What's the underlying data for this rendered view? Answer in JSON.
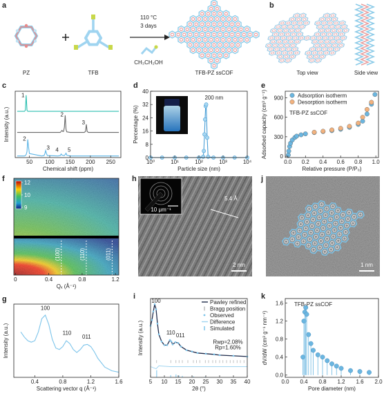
{
  "scheme": {
    "panel": "a",
    "pz": "PZ",
    "tfb": "TFB",
    "temperature": "110 °C",
    "time": "3 days",
    "solvent": "CH₃CH₂OH",
    "product": "TFB-PZ ssCOF"
  },
  "views": {
    "panel": "b",
    "top": "Top view",
    "side": "Side view"
  },
  "hrtem": {
    "panel": "h",
    "fft_scale": "10 μm⁻¹",
    "spacing": "5.4 Å",
    "scale_bar": "2 nm"
  },
  "stem_image": {
    "panel": "j",
    "scale_bar": "1 nm"
  },
  "chart_data": [
    {
      "panel": "c",
      "type": "line",
      "xlabel": "Chemical shift (ppm)",
      "ylabel": "Intensity (a.u.)",
      "xlim": [
        15,
        275
      ],
      "xticks": [
        50,
        100,
        150,
        200,
        250
      ],
      "ylim": [
        0,
        3.3
      ],
      "x": [
        20,
        38,
        40,
        42,
        44,
        46,
        48,
        50,
        80,
        86,
        88,
        90,
        92,
        94,
        120,
        126,
        128,
        130,
        132,
        134,
        136,
        138,
        140,
        142,
        150,
        185,
        188,
        190,
        192,
        195,
        230,
        270
      ],
      "series": [
        {
          "color": "#2bbfb0",
          "peak_labels": [
            "1"
          ],
          "values": [
            2.3,
            2.3,
            2.35,
            3.1,
            2.35,
            2.3,
            2.3,
            2.3,
            2.3,
            2.3,
            2.3,
            2.3,
            2.3,
            2.3,
            2.3,
            2.3,
            2.3,
            2.3,
            2.3,
            2.3,
            2.3,
            2.3,
            2.3,
            2.3,
            2.3,
            2.3,
            2.3,
            2.3,
            2.3,
            2.3,
            2.3,
            2.3
          ]
        },
        {
          "color": "#666666",
          "peak_labels": [
            "2",
            "3"
          ],
          "values": [
            1.25,
            1.25,
            1.25,
            1.25,
            1.25,
            1.25,
            1.25,
            1.25,
            1.25,
            1.25,
            1.25,
            1.25,
            1.25,
            1.25,
            1.25,
            1.25,
            1.3,
            1.35,
            1.3,
            1.3,
            1.5,
            2.1,
            1.4,
            1.28,
            1.25,
            1.25,
            1.3,
            1.65,
            1.3,
            1.25,
            1.25,
            1.25
          ]
        },
        {
          "color": "#5ab4e6",
          "peak_labels": [
            "2",
            "3",
            "4",
            "5"
          ],
          "values": [
            0.08,
            0.08,
            0.1,
            0.15,
            0.3,
            0.9,
            0.5,
            0.2,
            0.08,
            0.1,
            0.2,
            0.35,
            0.2,
            0.1,
            0.08,
            0.1,
            0.18,
            0.12,
            0.12,
            0.1,
            0.1,
            0.15,
            0.22,
            0.12,
            0.08,
            0.08,
            0.08,
            0.08,
            0.08,
            0.08,
            0.08,
            0.08
          ]
        }
      ]
    },
    {
      "panel": "d",
      "type": "line",
      "markers": true,
      "xlabel": "Particle size (nm)",
      "ylabel": "Percentage (%)",
      "xlog": true,
      "xlim": [
        1,
        10000
      ],
      "xticks": [
        {
          "value": 1,
          "label": "10⁰"
        },
        {
          "value": 10,
          "label": "10¹"
        },
        {
          "value": 100,
          "label": "10²"
        },
        {
          "value": 1000,
          "label": "10³"
        },
        {
          "value": 10000,
          "label": "10⁴"
        }
      ],
      "ylim": [
        0,
        40
      ],
      "yticks": [
        0,
        8,
        16,
        24,
        32,
        40
      ],
      "annotations": [
        "200 nm"
      ],
      "x": [
        1,
        3,
        10,
        30,
        100,
        150,
        160,
        170,
        180,
        190,
        200,
        220,
        240,
        400,
        1000,
        3000,
        10000
      ],
      "series": [
        {
          "color": "#4a9fd6",
          "values": [
            0,
            0,
            0,
            0,
            0,
            0.5,
            4,
            14,
            23,
            31,
            32,
            12,
            0.5,
            0,
            0,
            0,
            0
          ]
        }
      ]
    },
    {
      "panel": "e",
      "type": "scatter",
      "title": "TFB-PZ ssCOF",
      "xlabel": "Relative pressure (P/P₀)",
      "ylabel": "Adsorbed capacity (cm³ g⁻¹)",
      "xlim": [
        -0.03,
        1.03
      ],
      "xticks": [
        {
          "value": 0,
          "label": "0.0"
        },
        0.2,
        0.4,
        0.6,
        0.8,
        {
          "value": 1,
          "label": "1.0"
        }
      ],
      "ylim": [
        -20,
        1000
      ],
      "yticks": [
        0,
        300,
        600,
        900
      ],
      "legend": "upper left",
      "series": [
        {
          "name": "Adsorption isotherm",
          "color": "#6bb6e0",
          "x": [
            0.005,
            0.01,
            0.02,
            0.03,
            0.05,
            0.08,
            0.1,
            0.15,
            0.2,
            0.3,
            0.4,
            0.5,
            0.6,
            0.7,
            0.8,
            0.85,
            0.9,
            0.95,
            0.99
          ],
          "values": [
            20,
            80,
            150,
            200,
            250,
            290,
            310,
            330,
            345,
            365,
            380,
            395,
            415,
            445,
            490,
            540,
            650,
            800,
            950
          ]
        },
        {
          "name": "Desorption isotherm",
          "color": "#f2b27e",
          "x": [
            0.95,
            0.9,
            0.85,
            0.8,
            0.7,
            0.6,
            0.5,
            0.4,
            0.3
          ],
          "values": [
            830,
            720,
            600,
            510,
            460,
            430,
            405,
            385,
            370
          ]
        }
      ]
    },
    {
      "panel": "f",
      "type": "image",
      "xlabel": "Qₓ (Å⁻¹)",
      "xlim": [
        -0.02,
        1.24
      ],
      "xticks": [
        0,
        0.4,
        0.8,
        1.2
      ],
      "colorbar_ticks": [
        12,
        10,
        9
      ],
      "peak_labels": [
        "(100)",
        "(110)",
        "(011)"
      ]
    },
    {
      "panel": "g",
      "type": "line",
      "xlabel": "Scattering vector q (Å⁻¹)",
      "ylabel": "Intensity (a.u.)",
      "xlim": [
        0.1,
        1.6
      ],
      "xticks": [
        0.4,
        0.8,
        1.2,
        1.6
      ],
      "ylim": [
        0,
        1
      ],
      "annotations": [
        "100",
        "110",
        "011"
      ],
      "x": [
        0.2,
        0.25,
        0.3,
        0.35,
        0.4,
        0.45,
        0.5,
        0.55,
        0.6,
        0.65,
        0.7,
        0.75,
        0.8,
        0.85,
        0.9,
        0.95,
        1.0,
        1.05,
        1.1,
        1.15,
        1.2,
        1.25,
        1.3,
        1.4,
        1.5,
        1.6
      ],
      "series": [
        {
          "color": "#7cc4ea",
          "values": [
            0.62,
            0.55,
            0.5,
            0.48,
            0.5,
            0.62,
            0.8,
            0.85,
            0.72,
            0.52,
            0.4,
            0.38,
            0.42,
            0.5,
            0.46,
            0.38,
            0.34,
            0.38,
            0.44,
            0.45,
            0.42,
            0.35,
            0.26,
            0.14,
            0.09,
            0.07
          ]
        }
      ]
    },
    {
      "panel": "i",
      "type": "pattern",
      "xlabel": "2θ (°)",
      "ylabel": "Intensity (a.u.)",
      "xlim": [
        5,
        40
      ],
      "xticks": [
        5,
        10,
        15,
        20,
        25,
        30,
        35,
        40
      ],
      "ylim": [
        0,
        1.1
      ],
      "legend": "upper right",
      "annotations": [
        "100",
        "110",
        "011",
        "Rwp=2.08%",
        "Rp=1.60%"
      ],
      "series": [
        {
          "name": "Pawley refined",
          "kind": "line",
          "color": "#1e2a4a",
          "x": [
            5,
            5.5,
            6,
            6.5,
            7,
            7.5,
            8,
            9,
            10,
            11,
            12,
            12.5,
            13,
            14,
            15,
            16,
            18,
            20,
            22,
            25,
            28,
            30,
            35,
            40
          ],
          "values": [
            0.72,
            0.8,
            0.92,
            1.02,
            0.95,
            0.75,
            0.6,
            0.5,
            0.45,
            0.45,
            0.52,
            0.5,
            0.46,
            0.49,
            0.48,
            0.43,
            0.38,
            0.36,
            0.34,
            0.33,
            0.32,
            0.31,
            0.3,
            0.29
          ]
        },
        {
          "name": "Bragg position",
          "kind": "ticks",
          "color": "#999999",
          "x": [
            7.2,
            12.3,
            14.2,
            15.3,
            16.5,
            18.5,
            20.5,
            21.6,
            22.8,
            24.8,
            26,
            27.5,
            28.6,
            30,
            31.2,
            32.5,
            33.8,
            35,
            36.3,
            37.5,
            38.8
          ]
        },
        {
          "name": "Observed",
          "kind": "dots",
          "color": "#7cc4ea",
          "x": [
            5,
            5.5,
            6,
            6.5,
            7,
            7.5,
            8,
            9,
            10,
            11,
            12,
            12.5,
            13,
            14,
            15,
            16,
            18,
            20,
            22,
            25,
            28,
            30,
            35,
            40
          ],
          "values": [
            0.72,
            0.8,
            0.92,
            1.02,
            0.95,
            0.75,
            0.6,
            0.5,
            0.45,
            0.45,
            0.52,
            0.5,
            0.46,
            0.49,
            0.48,
            0.43,
            0.38,
            0.36,
            0.34,
            0.33,
            0.32,
            0.31,
            0.3,
            0.29
          ]
        },
        {
          "name": "Difference",
          "kind": "line",
          "color": "#9fd4f0",
          "x": [
            5,
            7,
            8,
            12,
            20,
            40
          ],
          "values": [
            0.15,
            0.12,
            0.16,
            0.15,
            0.15,
            0.15
          ]
        },
        {
          "name": "Simulated",
          "kind": "bars",
          "color": "#9fd4f0",
          "x": [
            7.2,
            12.3,
            14.2,
            15.3,
            16.5,
            20.5,
            24.8
          ],
          "values": [
            0.1,
            0.03,
            0.04,
            0.025,
            0.02,
            0.015,
            0.01
          ]
        }
      ]
    },
    {
      "panel": "k",
      "type": "stem",
      "title": "TFB-PZ ssCOF",
      "xlabel": "Pore diameter (nm)",
      "ylabel": "dV/dW (cm³ g⁻¹ nm⁻¹)",
      "xlim": [
        0,
        2.0
      ],
      "xticks": [
        {
          "value": 0,
          "label": "0.0"
        },
        0.4,
        0.8,
        1.2,
        1.6,
        {
          "value": 2,
          "label": "2.0"
        }
      ],
      "ylim": [
        -0.05,
        1.7
      ],
      "yticks": [
        {
          "value": 0,
          "label": "0.0"
        },
        0.4,
        0.8,
        1.2,
        1.6
      ],
      "x": [
        0.38,
        0.4,
        0.42,
        0.44,
        0.46,
        0.5,
        0.55,
        0.6,
        0.7,
        0.8,
        0.9,
        1.0,
        1.1,
        1.2,
        1.4,
        1.6,
        1.8
      ],
      "series": [
        {
          "color": "#6bb6e0",
          "values": [
            0.4,
            1.2,
            1.4,
            1.5,
            1.35,
            0.9,
            0.7,
            0.55,
            0.45,
            0.4,
            0.32,
            0.25,
            0.2,
            0.15,
            0.1,
            0.08,
            0.06
          ]
        }
      ]
    }
  ]
}
